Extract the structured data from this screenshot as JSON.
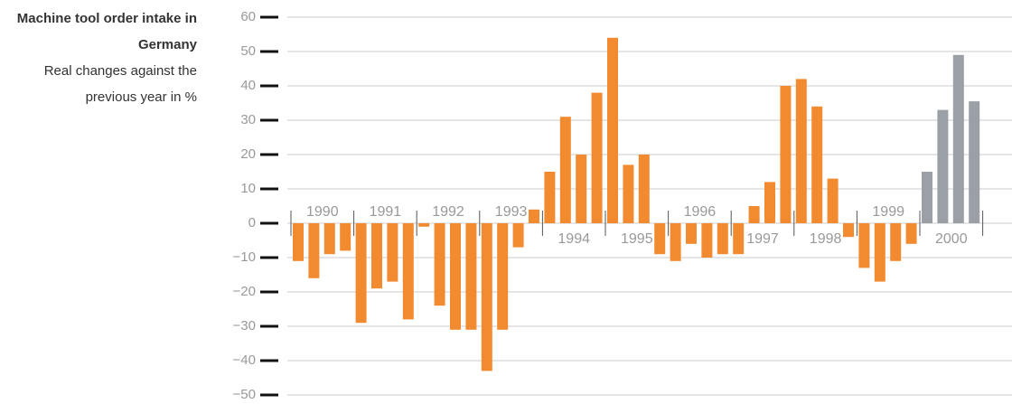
{
  "chart_data": {
    "type": "bar",
    "title": "Machine tool order intake in Germany",
    "subtitle": "Real changes against the previous year in %",
    "categories": [
      "1990",
      "1991",
      "1992",
      "1993",
      "1994",
      "1995",
      "1996",
      "1997",
      "1998",
      "1999",
      "2000"
    ],
    "values": [
      [
        -11,
        -16,
        -9,
        -8
      ],
      [
        -29,
        -19,
        -17,
        -28
      ],
      [
        -1,
        -24,
        -31,
        -31
      ],
      [
        -43,
        -31,
        -7,
        4
      ],
      [
        15,
        31,
        20,
        38
      ],
      [
        54,
        17,
        20,
        -9
      ],
      [
        -11,
        -6,
        -10,
        -9
      ],
      [
        -9,
        5,
        12,
        40
      ],
      [
        42,
        34,
        13,
        -4
      ],
      [
        -13,
        -17,
        -11,
        -6
      ],
      [
        15,
        33,
        49,
        35.5
      ]
    ],
    "colors": [
      "#f28a30",
      "#f28a30",
      "#f28a30",
      "#f28a30",
      "#f28a30",
      "#f28a30",
      "#f28a30",
      "#f28a30",
      "#f28a30",
      "#f28a30",
      "#9aa0a6"
    ],
    "ylim": [
      -50,
      60
    ],
    "yticks": [
      {
        "value": -50,
        "label": "−50"
      },
      {
        "value": -40,
        "label": "−40"
      },
      {
        "value": -30,
        "label": "−30"
      },
      {
        "value": -20,
        "label": "−20"
      },
      {
        "value": -10,
        "label": "−10"
      },
      0,
      10,
      20,
      30,
      40,
      50,
      60
    ],
    "grid": true
  }
}
